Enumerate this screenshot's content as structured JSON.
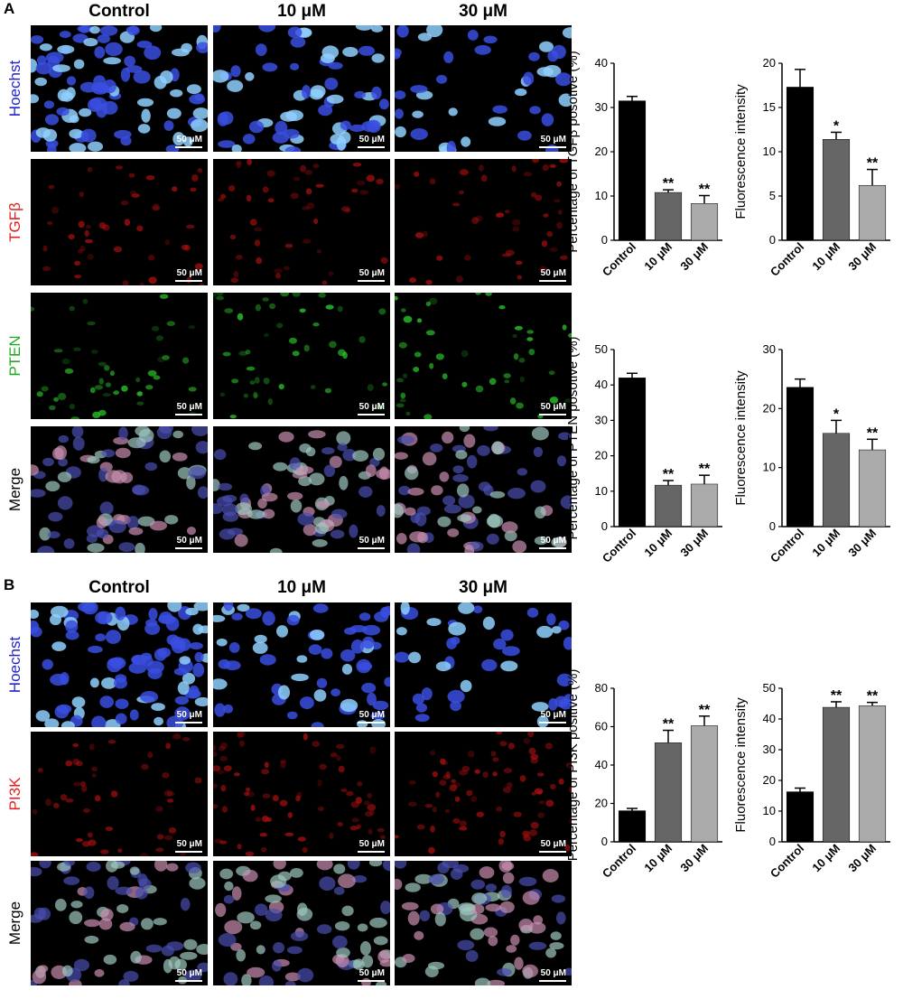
{
  "panels": [
    {
      "letter": "A",
      "columns": [
        "Control",
        "10 μM",
        "30 μM"
      ],
      "rows": [
        {
          "label": "Hoechst",
          "color": "#2222cc",
          "stain": "hoechst"
        },
        {
          "label": "TGFβ",
          "color": "#e22222",
          "stain": "red"
        },
        {
          "label": "PTEN",
          "color": "#22aa22",
          "stain": "green"
        },
        {
          "label": "Merge",
          "color": "#000000",
          "stain": "merge"
        }
      ],
      "scale_label": "50 μM"
    },
    {
      "letter": "B",
      "columns": [
        "Control",
        "10 μM",
        "30 μM"
      ],
      "rows": [
        {
          "label": "Hoechst",
          "color": "#2222cc",
          "stain": "hoechst"
        },
        {
          "label": "PI3K",
          "color": "#e22222",
          "stain": "red"
        },
        {
          "label": "Merge",
          "color": "#000000",
          "stain": "merge"
        }
      ],
      "scale_label": "50 μM"
    }
  ],
  "bar_colors": [
    "#000000",
    "#666666",
    "#aaaaaa"
  ],
  "chart_data": [
    {
      "type": "bar",
      "categories": [
        "Control",
        "10 μM",
        "30 μM"
      ],
      "values": [
        31.5,
        10.8,
        8.3
      ],
      "errors": [
        1.0,
        0.6,
        1.8
      ],
      "significance": [
        "",
        "**",
        "**"
      ],
      "title": "",
      "xlabel": "",
      "ylabel": "Percentage of TGFβ posotive (%)",
      "ylim": [
        0,
        40
      ],
      "yticks": [
        0,
        10,
        20,
        30,
        40
      ]
    },
    {
      "type": "bar",
      "categories": [
        "Control",
        "10 μM",
        "30 μM"
      ],
      "values": [
        17.3,
        11.4,
        6.2
      ],
      "errors": [
        2.0,
        0.8,
        1.8
      ],
      "significance": [
        "",
        "*",
        "**"
      ],
      "title": "",
      "xlabel": "",
      "ylabel": "Fluorescence intensity",
      "ylim": [
        0,
        20
      ],
      "yticks": [
        0,
        5,
        10,
        15,
        20
      ]
    },
    {
      "type": "bar",
      "categories": [
        "Control",
        "10 μM",
        "30 μM"
      ],
      "values": [
        42,
        11.7,
        12
      ],
      "errors": [
        1.3,
        1.3,
        2.5
      ],
      "significance": [
        "",
        "**",
        "**"
      ],
      "title": "",
      "xlabel": "",
      "ylabel": "Percentage of PTEN posotive (%)",
      "ylim": [
        0,
        50
      ],
      "yticks": [
        0,
        10,
        20,
        30,
        40,
        50
      ]
    },
    {
      "type": "bar",
      "categories": [
        "Control",
        "10 μM",
        "30 μM"
      ],
      "values": [
        23.6,
        15.8,
        13
      ],
      "errors": [
        1.4,
        2.2,
        1.8
      ],
      "significance": [
        "",
        "*",
        "**"
      ],
      "title": "",
      "xlabel": "",
      "ylabel": "Fluorescence intensity",
      "ylim": [
        0,
        30
      ],
      "yticks": [
        0,
        10,
        20,
        30
      ]
    },
    {
      "type": "bar",
      "categories": [
        "Control",
        "10 μM",
        "30 μM"
      ],
      "values": [
        16.2,
        51.6,
        60.5
      ],
      "errors": [
        1.2,
        6.5,
        5.0
      ],
      "significance": [
        "",
        "**",
        "**"
      ],
      "title": "",
      "xlabel": "",
      "ylabel": "Percentage of PI3K positive (%)",
      "ylim": [
        0,
        80
      ],
      "yticks": [
        0,
        20,
        40,
        60,
        80
      ]
    },
    {
      "type": "bar",
      "categories": [
        "Control",
        "10 μM",
        "30 μM"
      ],
      "values": [
        16.3,
        43.8,
        44.3
      ],
      "errors": [
        1.2,
        1.8,
        1.1
      ],
      "significance": [
        "",
        "**",
        "**"
      ],
      "title": "",
      "xlabel": "",
      "ylabel": "Fluorescence intensity",
      "ylim": [
        0,
        50
      ],
      "yticks": [
        0,
        10,
        20,
        30,
        40,
        50
      ]
    }
  ]
}
